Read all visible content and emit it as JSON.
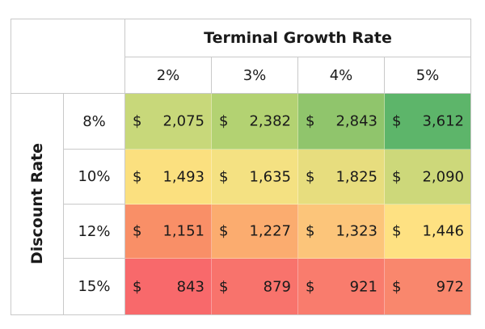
{
  "chart_data": {
    "type": "heatmap",
    "title": "",
    "column_axis_title": "Terminal Growth Rate",
    "row_axis_title": "Discount Rate",
    "columns": [
      "2%",
      "3%",
      "4%",
      "5%"
    ],
    "rows": [
      "8%",
      "10%",
      "12%",
      "15%"
    ],
    "currency_symbol": "$",
    "values": [
      [
        "2,075",
        "2,382",
        "2,843",
        "3,612"
      ],
      [
        "1,493",
        "1,635",
        "1,825",
        "2,090"
      ],
      [
        "1,151",
        "1,227",
        "1,323",
        "1,446"
      ],
      [
        "843",
        "879",
        "921",
        "972"
      ]
    ],
    "cell_colors": [
      [
        "#c8d87a",
        "#b3d272",
        "#90c56c",
        "#5db56a"
      ],
      [
        "#fbe07f",
        "#f4e182",
        "#e7dd7e",
        "#cdd87a"
      ],
      [
        "#f98f67",
        "#fbac6f",
        "#fcc57a",
        "#fee182"
      ],
      [
        "#f8696b",
        "#f8736c",
        "#f97c6d",
        "#f9876d"
      ]
    ]
  }
}
